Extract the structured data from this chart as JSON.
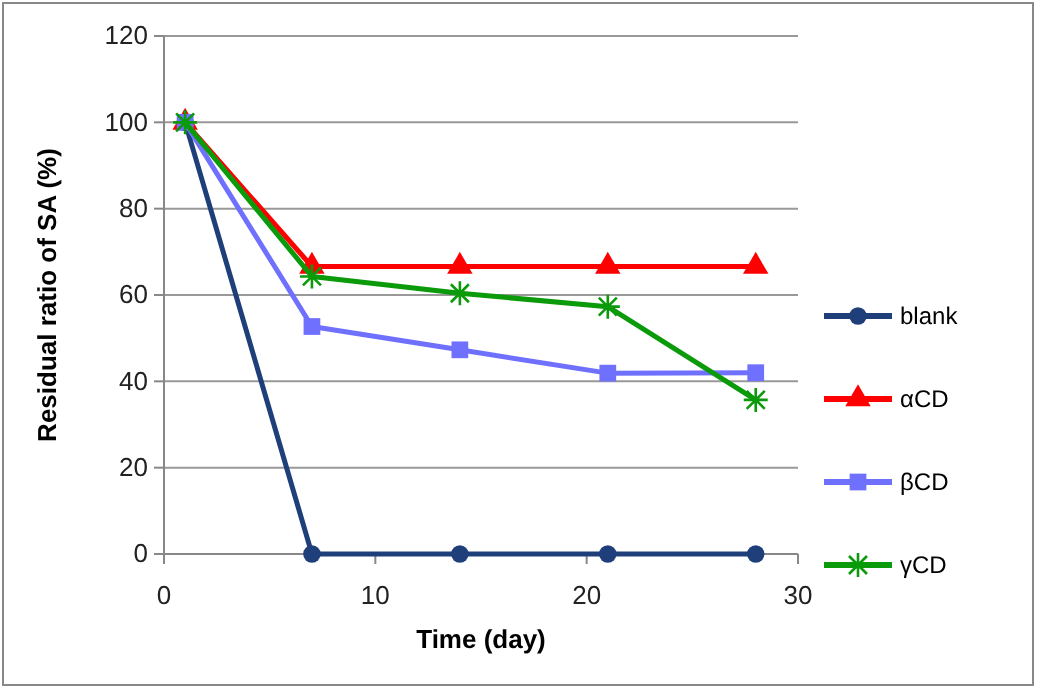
{
  "chart_data": {
    "type": "line",
    "xlabel": "Time (day)",
    "ylabel": "Residual ratio of SA (%)",
    "x": [
      1,
      7,
      14,
      21,
      28
    ],
    "xlim": [
      0,
      30
    ],
    "xticks": [
      0,
      10,
      20,
      30
    ],
    "ylim": [
      0,
      120
    ],
    "yticks": [
      0,
      20,
      40,
      60,
      80,
      100,
      120
    ],
    "grid": "y",
    "legend": "right",
    "series": [
      {
        "name": "blank",
        "color": "#1f3f7a",
        "marker": "circle",
        "values": [
          100,
          0,
          0,
          0,
          0
        ]
      },
      {
        "name": "αCD",
        "color": "#ff0000",
        "marker": "triangle",
        "values": [
          100,
          66.6,
          66.6,
          66.6,
          66.6
        ]
      },
      {
        "name": "βCD",
        "color": "#7070ff",
        "marker": "square",
        "values": [
          100,
          52.7,
          47.3,
          41.9,
          42
        ]
      },
      {
        "name": "γCD",
        "color": "#0a9a0a",
        "marker": "cross",
        "values": [
          100,
          64.3,
          60.4,
          57.3,
          35.7
        ]
      }
    ]
  }
}
